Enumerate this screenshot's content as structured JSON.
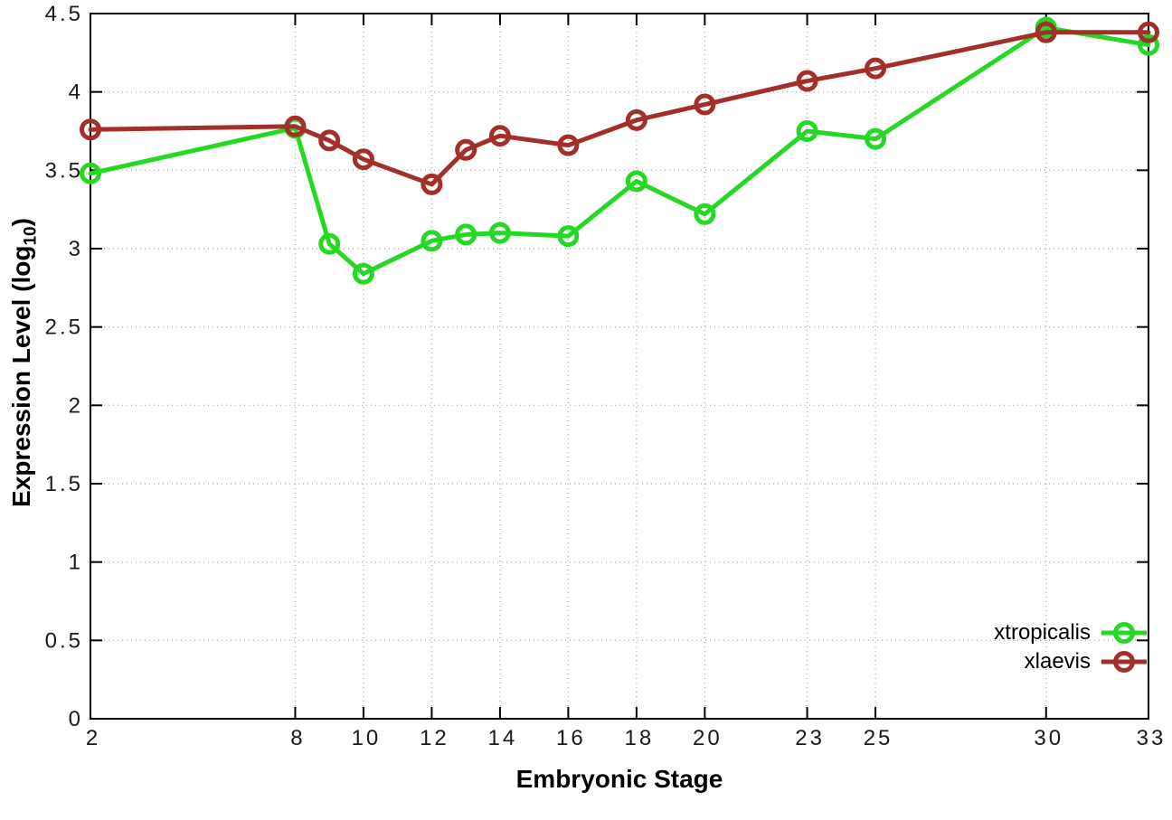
{
  "chart_data": {
    "type": "line",
    "title": "",
    "xlabel": "Embryonic Stage",
    "ylabel": "Expression Level (log10)",
    "ylabel_parts": {
      "main": "Expression Level (log",
      "sub": "10",
      "end": ")"
    },
    "x": [
      2,
      8,
      9,
      10,
      12,
      13,
      14,
      16,
      18,
      20,
      23,
      25,
      30,
      33
    ],
    "xlim": [
      2,
      33
    ],
    "ylim": [
      0,
      4.5
    ],
    "x_ticks": [
      2,
      8,
      10,
      12,
      14,
      16,
      18,
      20,
      23,
      25,
      30,
      33
    ],
    "x_tick_labels": [
      "2",
      "8",
      "10",
      "12",
      "14",
      "16",
      "18",
      "20",
      "23",
      "25",
      "30",
      "33"
    ],
    "y_ticks": [
      0,
      0.5,
      1,
      1.5,
      2,
      2.5,
      3,
      3.5,
      4,
      4.5
    ],
    "y_tick_labels": [
      "0",
      "0.5",
      "1",
      "1.5",
      "2",
      "2.5",
      "3",
      "3.5",
      "4",
      "4.5"
    ],
    "grid": true,
    "legend_position": "bottom-right-inside",
    "series": [
      {
        "name": "xtropicalis",
        "color": "#24d824",
        "marker": "open-circle",
        "values": [
          3.48,
          3.77,
          3.03,
          2.84,
          3.05,
          3.09,
          3.1,
          3.08,
          3.43,
          3.22,
          3.75,
          3.7,
          4.41,
          4.3
        ]
      },
      {
        "name": "xlaevis",
        "color": "#a42f2a",
        "marker": "open-circle",
        "values": [
          3.76,
          3.78,
          3.69,
          3.57,
          3.41,
          3.63,
          3.72,
          3.66,
          3.82,
          3.92,
          4.07,
          4.15,
          4.38,
          4.38
        ]
      }
    ],
    "style": {
      "grid_color": "#b5b5b5",
      "axis_color": "#000000",
      "background": "#ffffff",
      "line_width": 5,
      "marker_radius": 9.5,
      "marker_stroke": 5
    }
  }
}
